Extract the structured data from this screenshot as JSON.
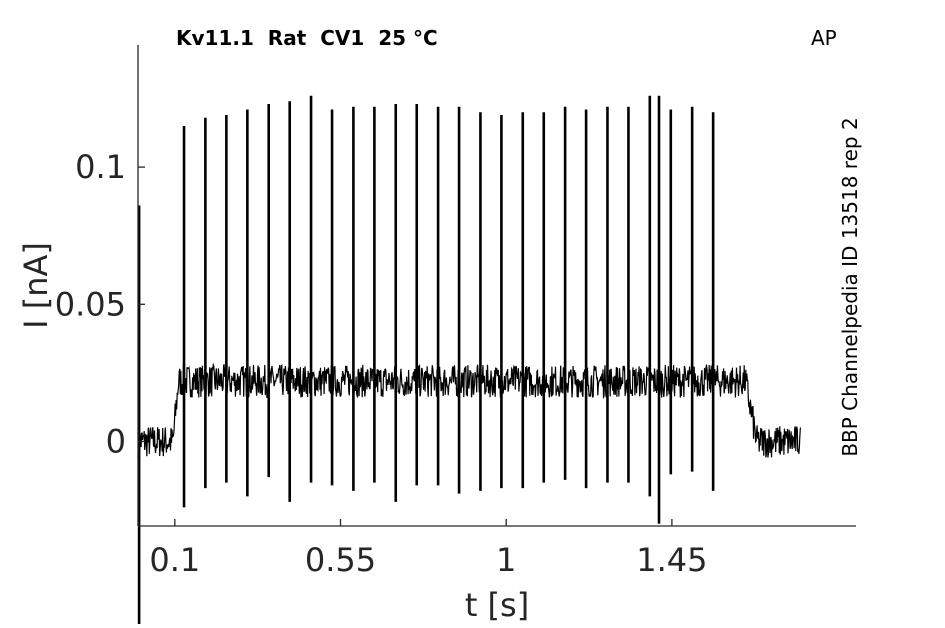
{
  "chart_data": {
    "type": "line",
    "title": "Kv11.1  Rat  CV1  25 °C",
    "corner_label": "AP",
    "side_label": "BBP Channelpedia ID 13518 rep 2",
    "xlabel": "t [s]",
    "ylabel": "I [nA]",
    "xlim": [
      0,
      1.95
    ],
    "ylim": [
      -0.0308,
      0.1445
    ],
    "xticks": [
      0.1,
      0.55,
      1,
      1.45
    ],
    "xtick_labels": [
      "0.1",
      "0.55",
      "1",
      "1.45"
    ],
    "yticks": [
      0,
      0.05,
      0.1
    ],
    "ytick_labels": [
      "0",
      "0.05",
      "0.1"
    ],
    "grid": false,
    "series": [
      {
        "color": "#000000",
        "baseline_pre": 0.0,
        "baseline_plateau": 0.022,
        "baseline_post": 0.0,
        "plateau_start": 0.11,
        "plateau_end": 1.65,
        "t_end": 1.8,
        "noise_amplitude": 0.006,
        "spike_times": [
          0.125,
          0.183,
          0.24,
          0.297,
          0.355,
          0.412,
          0.47,
          0.527,
          0.585,
          0.642,
          0.7,
          0.757,
          0.815,
          0.872,
          0.93,
          0.987,
          1.045,
          1.102,
          1.16,
          1.217,
          1.275,
          1.332,
          1.39,
          1.447,
          1.505,
          1.562
        ],
        "spike_peaks": [
          0.115,
          0.118,
          0.119,
          0.121,
          0.123,
          0.124,
          0.126,
          0.121,
          0.122,
          0.122,
          0.123,
          0.123,
          0.122,
          0.122,
          0.12,
          0.119,
          0.12,
          0.12,
          0.122,
          0.121,
          0.122,
          0.122,
          0.126,
          0.121,
          0.122,
          0.12
        ],
        "spike_troughs": [
          -0.024,
          -0.017,
          -0.015,
          -0.02,
          -0.013,
          -0.022,
          -0.015,
          -0.016,
          -0.018,
          -0.015,
          -0.022,
          -0.016,
          -0.016,
          -0.019,
          -0.018,
          -0.017,
          -0.017,
          -0.015,
          -0.014,
          -0.017,
          -0.015,
          -0.015,
          -0.02,
          -0.012,
          -0.011,
          -0.018
        ],
        "artifacts": [
          {
            "t": 0.003,
            "peak": 0.086,
            "trough": -0.3
          },
          {
            "t": 1.415,
            "peak": 0.126,
            "trough": -0.03
          }
        ]
      }
    ]
  }
}
